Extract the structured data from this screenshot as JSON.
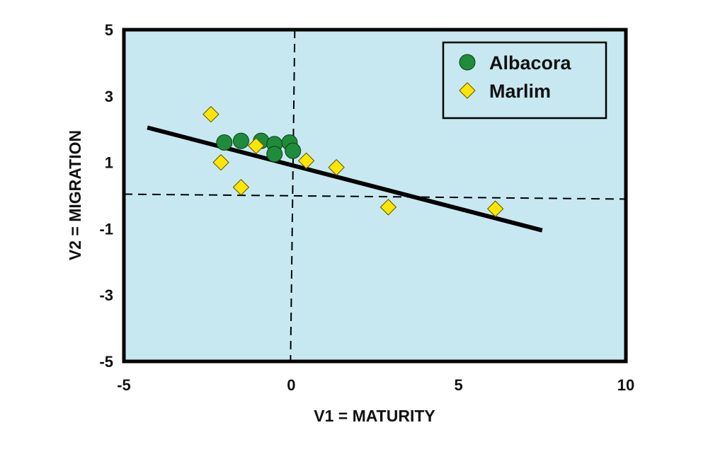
{
  "chart_data": {
    "type": "scatter",
    "xlabel": "V1 = MATURITY",
    "ylabel": "V2 = MIGRATION",
    "xlim": [
      -5,
      10
    ],
    "ylim": [
      -5,
      5
    ],
    "x_ticks": [
      "-5",
      "0",
      "5",
      "10"
    ],
    "y_ticks": [
      "5",
      "3",
      "1",
      "-1",
      "-3",
      "-5"
    ],
    "background_color": "#c7e8f1",
    "grid": false,
    "legend_position": "top-right",
    "reference_lines": [
      {
        "orientation": "vertical",
        "value": 0,
        "style": "dashed"
      },
      {
        "orientation": "horizontal",
        "value": 0,
        "style": "dashed"
      }
    ],
    "trend_line": {
      "x": [
        -4.3,
        7.5
      ],
      "y": [
        2.05,
        -1.05
      ]
    },
    "series": [
      {
        "name": "Albacora",
        "marker": "circle",
        "color": "#1e8c3a",
        "points": [
          {
            "x": -2.0,
            "y": 1.6
          },
          {
            "x": -1.5,
            "y": 1.65
          },
          {
            "x": -0.9,
            "y": 1.65
          },
          {
            "x": -0.5,
            "y": 1.55
          },
          {
            "x": -0.5,
            "y": 1.25
          },
          {
            "x": -0.05,
            "y": 1.6
          },
          {
            "x": 0.05,
            "y": 1.35
          }
        ]
      },
      {
        "name": "Marlim",
        "marker": "diamond",
        "color": "#ffe600",
        "points": [
          {
            "x": -2.4,
            "y": 2.45
          },
          {
            "x": -2.1,
            "y": 1.0
          },
          {
            "x": -1.5,
            "y": 0.25
          },
          {
            "x": -1.05,
            "y": 1.5
          },
          {
            "x": 0.45,
            "y": 1.05
          },
          {
            "x": 1.35,
            "y": 0.85
          },
          {
            "x": 2.9,
            "y": -0.35
          },
          {
            "x": 6.1,
            "y": -0.4
          }
        ]
      }
    ]
  }
}
